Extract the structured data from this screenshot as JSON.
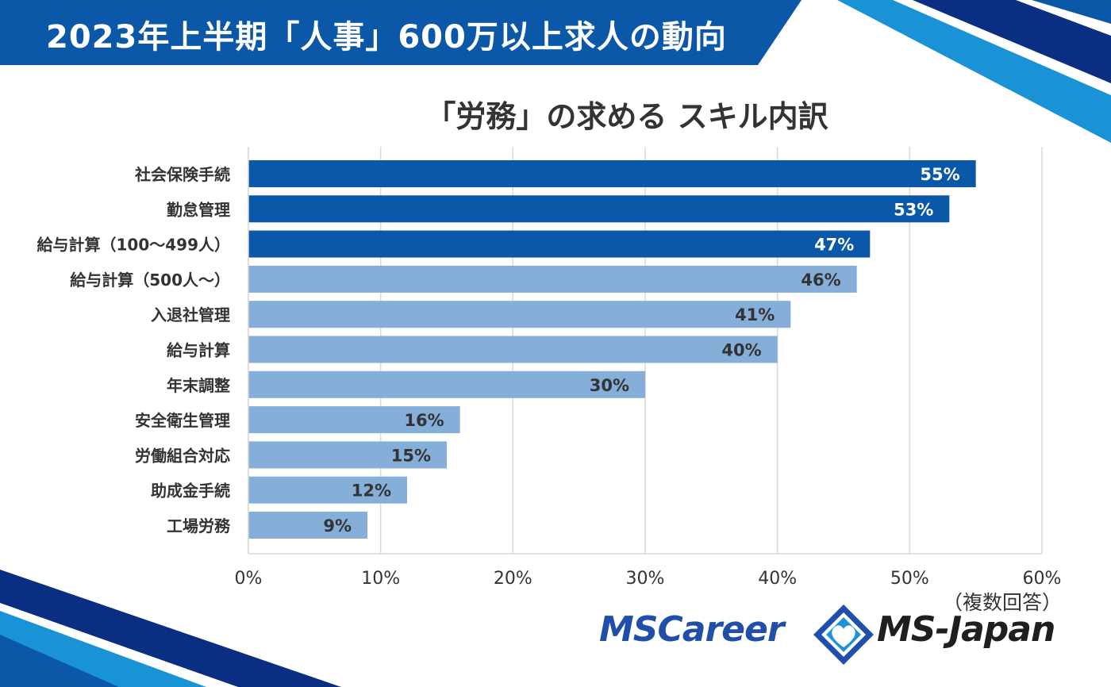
{
  "header": {
    "title": "2023年上半期「人事」600万以上求人の動向"
  },
  "chart_data": {
    "type": "bar",
    "orientation": "horizontal",
    "title": "「労務」の求める スキル内訳",
    "categories": [
      "社会保険手続",
      "勤怠管理",
      "給与計算（100〜499人）",
      "給与計算（500人〜）",
      "入退社管理",
      "給与計算",
      "年末調整",
      "安全衛生管理",
      "労働組合対応",
      "助成金手続",
      "工場労務"
    ],
    "values": [
      55,
      53,
      47,
      46,
      41,
      40,
      30,
      16,
      15,
      12,
      9
    ],
    "data_labels": [
      "55%",
      "53%",
      "47%",
      "46%",
      "41%",
      "40%",
      "30%",
      "16%",
      "15%",
      "12%",
      "9%"
    ],
    "highlighted_count": 3,
    "xlim": [
      0,
      60
    ],
    "xticks": [
      "0%",
      "10%",
      "20%",
      "30%",
      "40%",
      "50%",
      "60%"
    ],
    "grid": true,
    "colors": {
      "highlight": "#0b57a8",
      "normal": "#85afd8",
      "label_on_highlight": "#ffffff",
      "label_on_normal": "#333333",
      "grid": "#d9d9d9"
    }
  },
  "note": "（複数回答）",
  "logos": {
    "left": "MSCareer",
    "right": "MS-Japan",
    "mark": "diamond-heart-icon"
  },
  "colors": {
    "header_blue": "#0b57a8",
    "stripe_light": "#1a93d6",
    "stripe_dark": "#0a2f82"
  }
}
